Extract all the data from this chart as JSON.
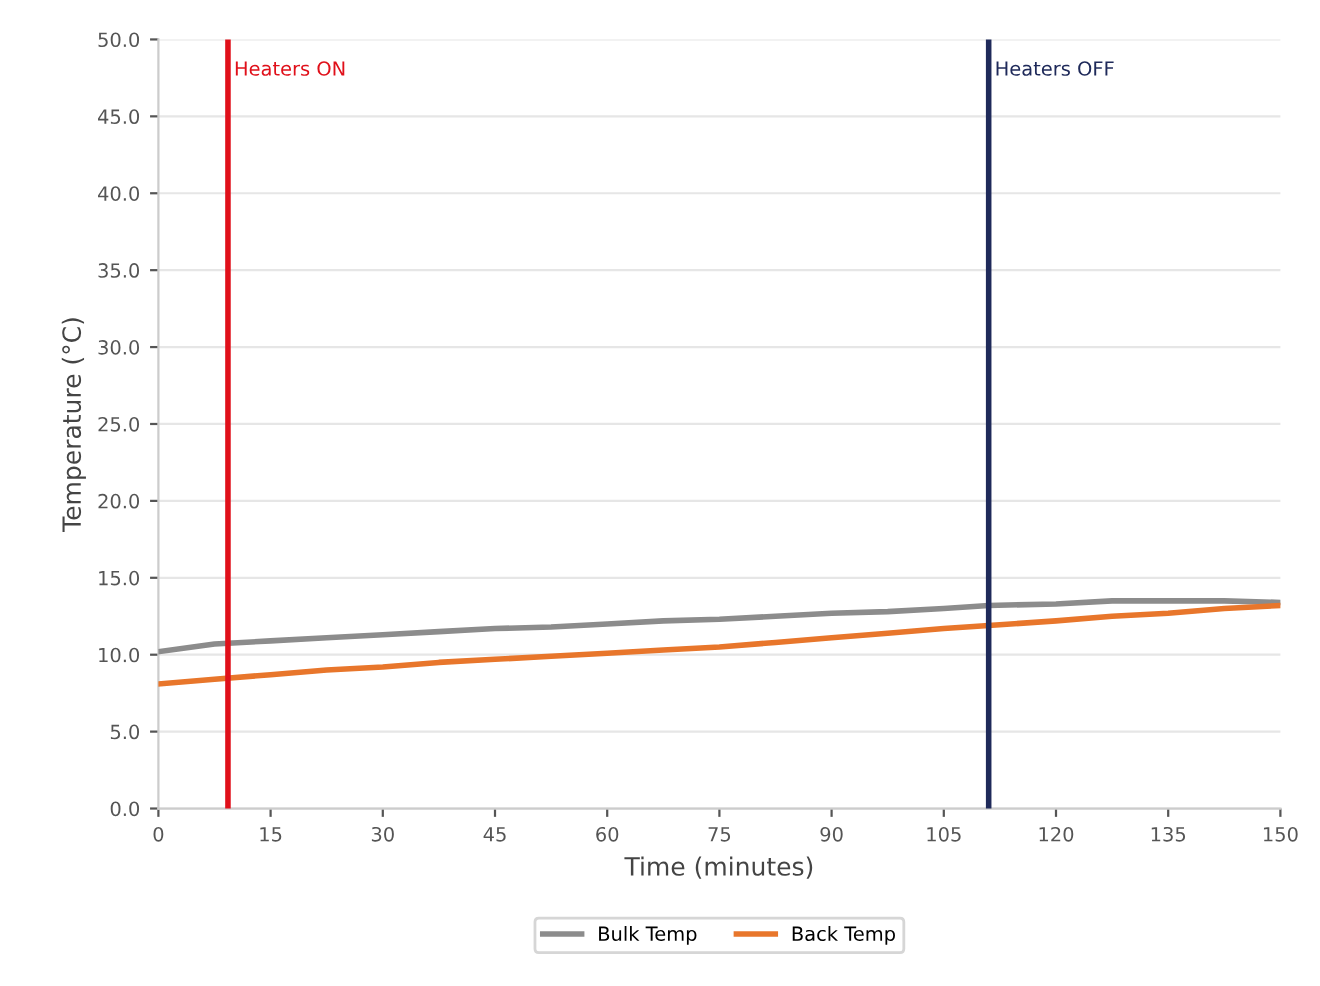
{
  "chart_data": {
    "type": "line",
    "xlabel": "Time (minutes)",
    "ylabel": "Temperature (°C)",
    "x": [
      0,
      7.5,
      15,
      22.5,
      30,
      37.5,
      45,
      52.5,
      60,
      67.5,
      75,
      82.5,
      90,
      97.5,
      105,
      111,
      120,
      127.5,
      135,
      142.5,
      150
    ],
    "series": [
      {
        "name": "Bulk Temp",
        "color": "#8c8c8c",
        "values": [
          10.2,
          10.7,
          10.9,
          11.1,
          11.3,
          11.5,
          11.7,
          11.8,
          12.0,
          12.2,
          12.3,
          12.5,
          12.7,
          12.8,
          13.0,
          13.2,
          13.3,
          13.5,
          13.5,
          13.5,
          13.4
        ]
      },
      {
        "name": "Back Temp",
        "color": "#e8762b",
        "values": [
          8.1,
          8.4,
          8.7,
          9.0,
          9.2,
          9.5,
          9.7,
          9.9,
          10.1,
          10.3,
          10.5,
          10.8,
          11.1,
          11.4,
          11.7,
          11.9,
          12.2,
          12.5,
          12.7,
          13.0,
          13.2
        ]
      }
    ],
    "xlim": [
      0,
      150
    ],
    "xticks": [
      0,
      15,
      30,
      45,
      60,
      75,
      90,
      105,
      120,
      135,
      150
    ],
    "ylim": [
      0,
      50
    ],
    "yticks": [
      {
        "value": 0,
        "label": "0.0"
      },
      {
        "value": 5,
        "label": "5.0"
      },
      {
        "value": 10,
        "label": "10.0"
      },
      {
        "value": 15,
        "label": "15.0"
      },
      {
        "value": 20,
        "label": "20.0"
      },
      {
        "value": 25,
        "label": "25.0"
      },
      {
        "value": 30,
        "label": "30.0"
      },
      {
        "value": 35,
        "label": "35.0"
      },
      {
        "value": 40,
        "label": "40.0"
      },
      {
        "value": 45,
        "label": "45.0"
      },
      {
        "value": 50,
        "label": "50.0"
      }
    ],
    "ref_lines": [
      {
        "axis": "x",
        "value": 9.3,
        "label": "Heaters ON",
        "color": "#e0101a"
      },
      {
        "axis": "x",
        "value": 111,
        "label": "Heaters OFF",
        "color": "#1f2a5a"
      }
    ],
    "grid": "y",
    "legend": "bottom",
    "marker": "none",
    "line_style": "solid"
  }
}
